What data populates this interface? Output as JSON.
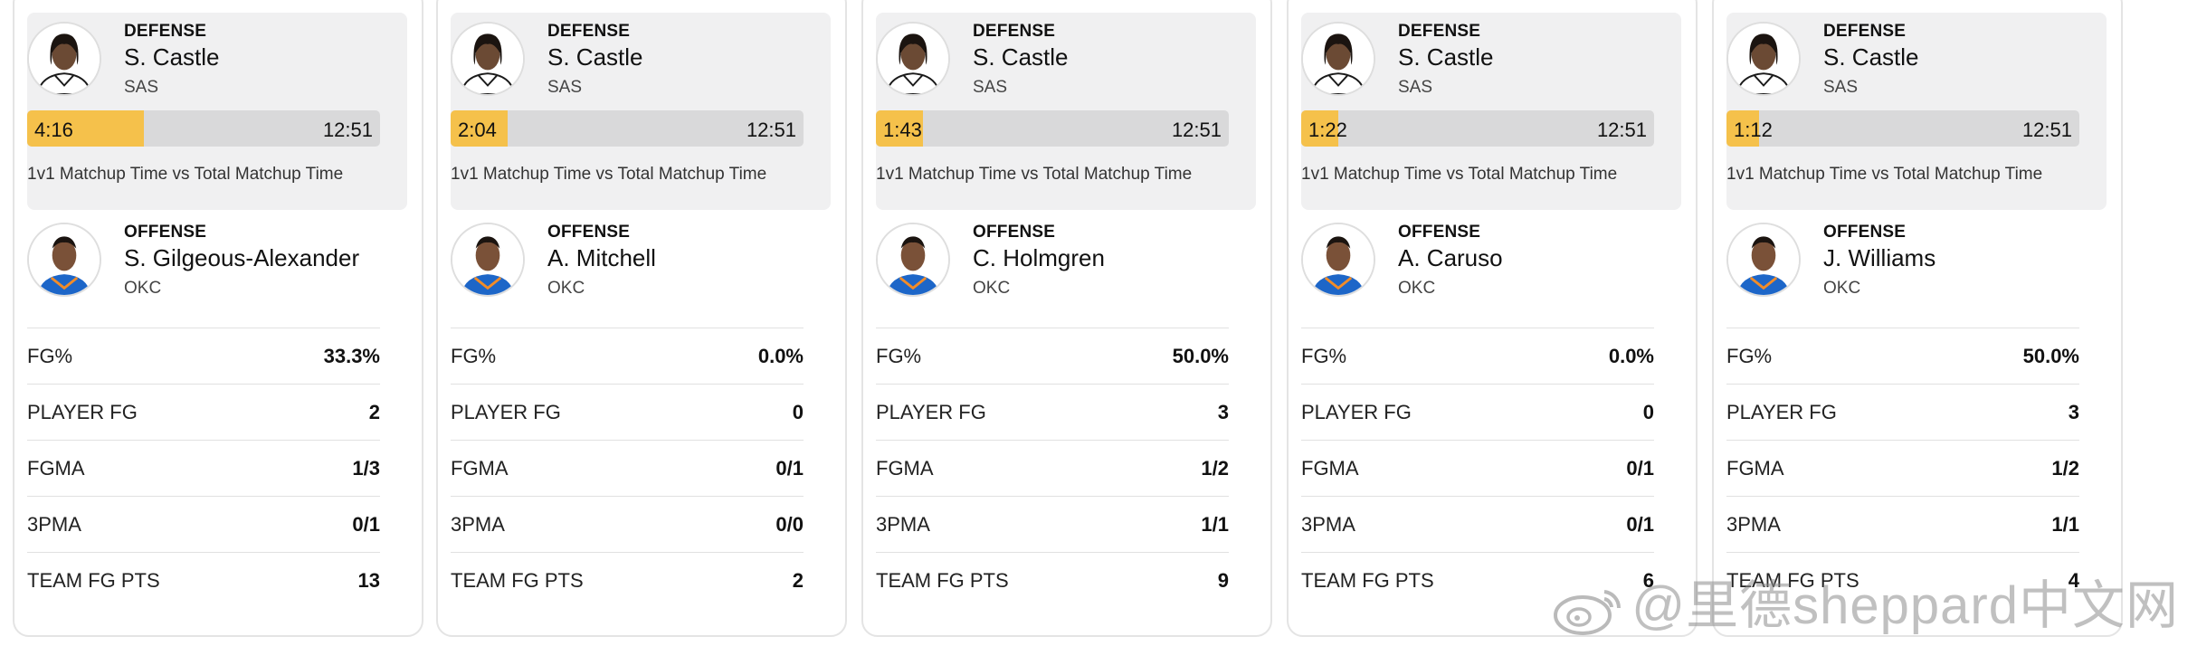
{
  "cards": [
    {
      "defense": {
        "role": "DEFENSE",
        "name": "S. Castle",
        "team": "SAS"
      },
      "matchup": {
        "time_1v1": "4:16",
        "time_total": "12:51",
        "fraction": 0.332,
        "caption": "1v1 Matchup Time vs Total Matchup Time"
      },
      "offense": {
        "role": "OFFENSE",
        "name": "S. Gilgeous-Alexander",
        "team": "OKC"
      },
      "stats": [
        {
          "label": "FG%",
          "value": "33.3%"
        },
        {
          "label": "PLAYER FG",
          "value": "2"
        },
        {
          "label": "FGMA",
          "value": "1/3"
        },
        {
          "label": "3PMA",
          "value": "0/1"
        },
        {
          "label": "TEAM FG PTS",
          "value": "13"
        }
      ]
    },
    {
      "defense": {
        "role": "DEFENSE",
        "name": "S. Castle",
        "team": "SAS"
      },
      "matchup": {
        "time_1v1": "2:04",
        "time_total": "12:51",
        "fraction": 0.161,
        "caption": "1v1 Matchup Time vs Total Matchup Time"
      },
      "offense": {
        "role": "OFFENSE",
        "name": "A. Mitchell",
        "team": "OKC"
      },
      "stats": [
        {
          "label": "FG%",
          "value": "0.0%"
        },
        {
          "label": "PLAYER FG",
          "value": "0"
        },
        {
          "label": "FGMA",
          "value": "0/1"
        },
        {
          "label": "3PMA",
          "value": "0/0"
        },
        {
          "label": "TEAM FG PTS",
          "value": "2"
        }
      ]
    },
    {
      "defense": {
        "role": "DEFENSE",
        "name": "S. Castle",
        "team": "SAS"
      },
      "matchup": {
        "time_1v1": "1:43",
        "time_total": "12:51",
        "fraction": 0.134,
        "caption": "1v1 Matchup Time vs Total Matchup Time"
      },
      "offense": {
        "role": "OFFENSE",
        "name": "C. Holmgren",
        "team": "OKC"
      },
      "stats": [
        {
          "label": "FG%",
          "value": "50.0%"
        },
        {
          "label": "PLAYER FG",
          "value": "3"
        },
        {
          "label": "FGMA",
          "value": "1/2"
        },
        {
          "label": "3PMA",
          "value": "1/1"
        },
        {
          "label": "TEAM FG PTS",
          "value": "9"
        }
      ]
    },
    {
      "defense": {
        "role": "DEFENSE",
        "name": "S. Castle",
        "team": "SAS"
      },
      "matchup": {
        "time_1v1": "1:22",
        "time_total": "12:51",
        "fraction": 0.106,
        "caption": "1v1 Matchup Time vs Total Matchup Time"
      },
      "offense": {
        "role": "OFFENSE",
        "name": "A. Caruso",
        "team": "OKC"
      },
      "stats": [
        {
          "label": "FG%",
          "value": "0.0%"
        },
        {
          "label": "PLAYER FG",
          "value": "0"
        },
        {
          "label": "FGMA",
          "value": "0/1"
        },
        {
          "label": "3PMA",
          "value": "0/1"
        },
        {
          "label": "TEAM FG PTS",
          "value": "6"
        }
      ]
    },
    {
      "defense": {
        "role": "DEFENSE",
        "name": "S. Castle",
        "team": "SAS"
      },
      "matchup": {
        "time_1v1": "1:12",
        "time_total": "12:51",
        "fraction": 0.093,
        "caption": "1v1 Matchup Time vs Total Matchup Time"
      },
      "offense": {
        "role": "OFFENSE",
        "name": "J. Williams",
        "team": "OKC"
      },
      "stats": [
        {
          "label": "FG%",
          "value": "50.0%"
        },
        {
          "label": "PLAYER FG",
          "value": "3"
        },
        {
          "label": "FGMA",
          "value": "1/2"
        },
        {
          "label": "3PMA",
          "value": "1/1"
        },
        {
          "label": "TEAM FG PTS",
          "value": "4"
        }
      ]
    }
  ],
  "watermark": {
    "text": "@里德sheppard中文网",
    "icon": "weibo-icon"
  },
  "colors": {
    "bar_fill": "#f5c14b",
    "bar_track": "#d9d9da",
    "defense_panel": "#f0f0f1",
    "okc_blue": "#1d66c8",
    "sas_black": "#1a1a1a"
  }
}
